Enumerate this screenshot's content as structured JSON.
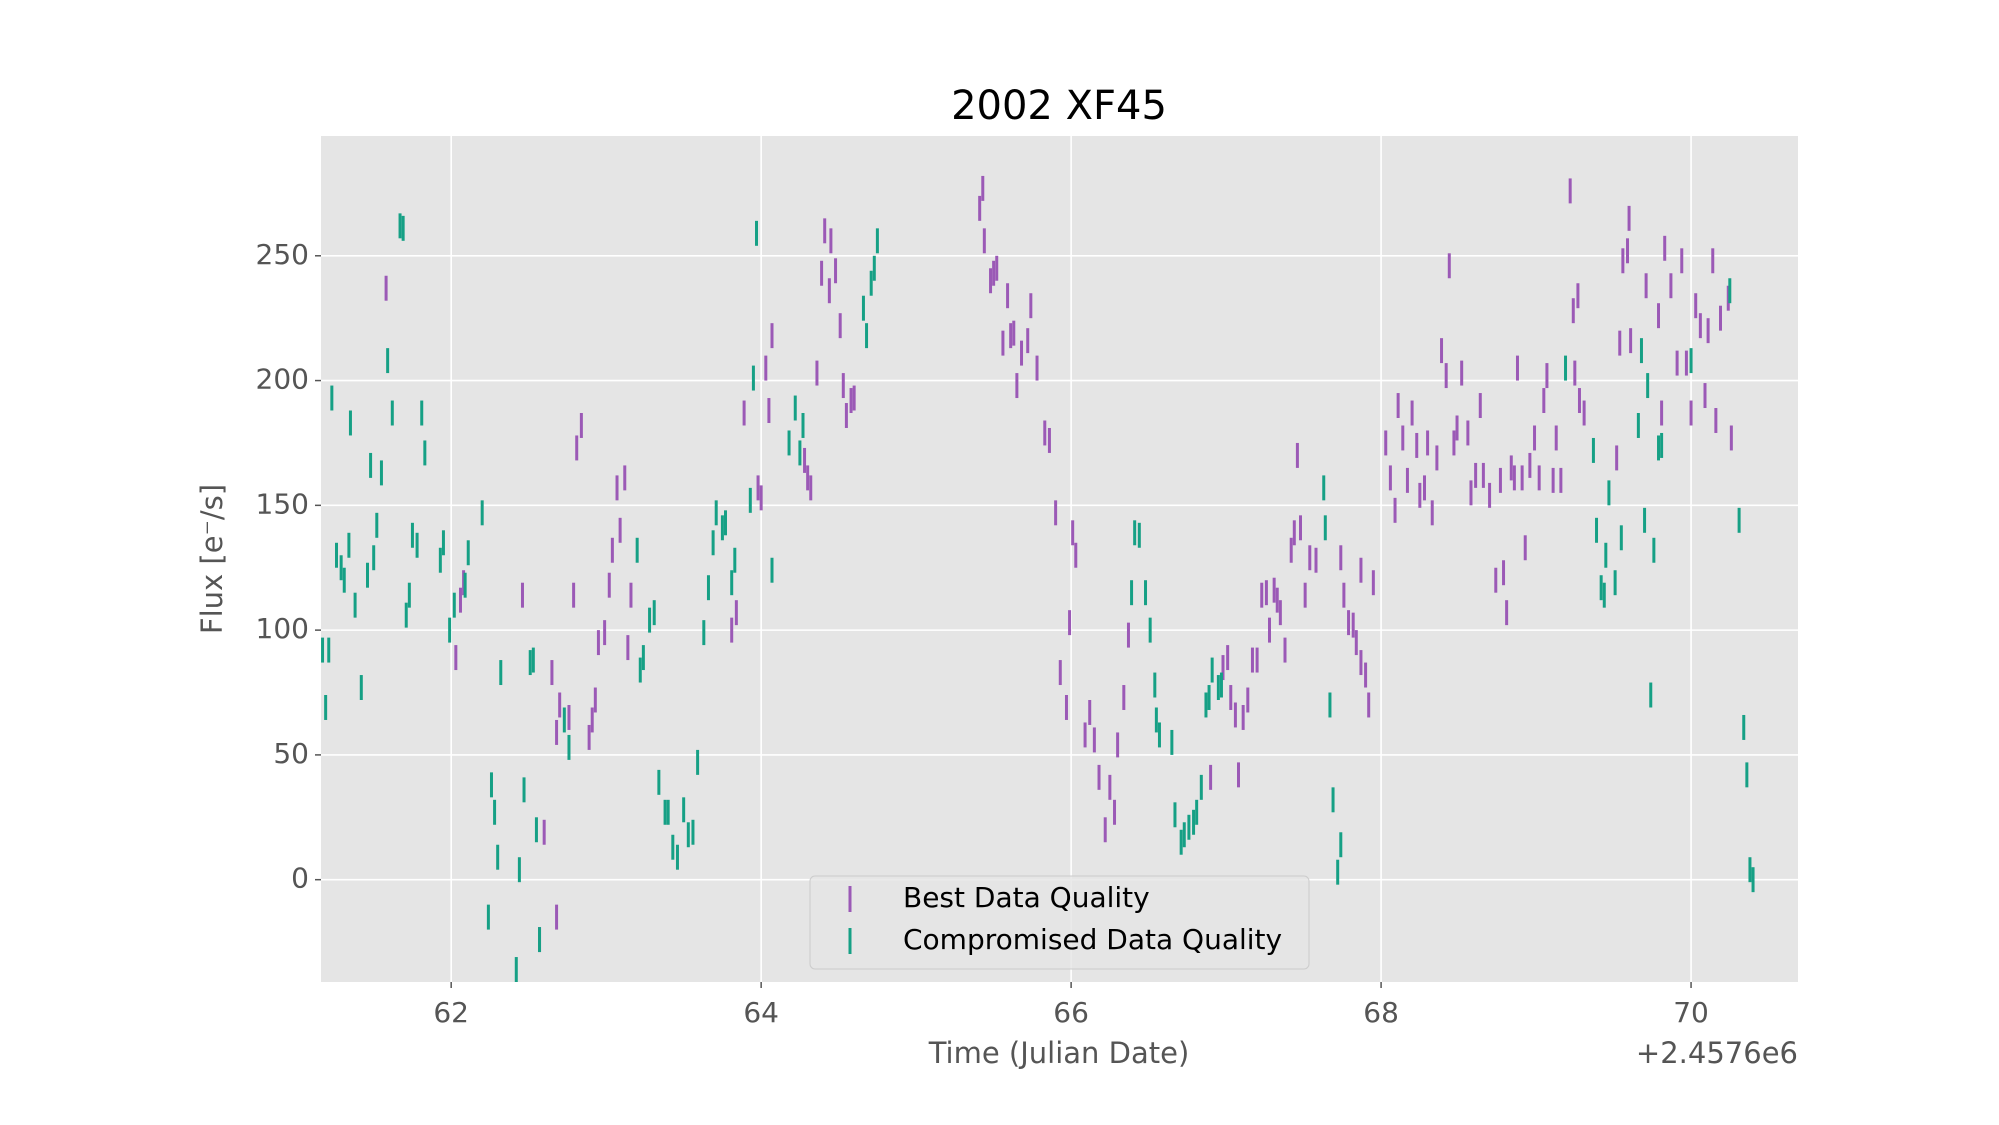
{
  "chart_data": {
    "type": "errorbar",
    "title": "2002 XF45",
    "x_label": "Time (Julian Date)",
    "y_label": "Flux [e⁻/s]",
    "x_offset_label": "+2.4576e6",
    "xlim": [
      61.16,
      70.69
    ],
    "ylim": [
      -41,
      298
    ],
    "xticks": [
      62,
      64,
      66,
      68,
      70
    ],
    "yticks": [
      0,
      50,
      100,
      150,
      200,
      250
    ],
    "grid": true,
    "legend": "lower center",
    "series": [
      {
        "name": "Best Data Quality",
        "color": "#9b59b6",
        "error": 5,
        "x": [
          61.58,
          62.03,
          62.06,
          62.08,
          62.46,
          62.57,
          62.6,
          62.65,
          62.68,
          62.68,
          62.7,
          62.76,
          62.79,
          62.81,
          62.84,
          62.89,
          62.91,
          62.93,
          62.95,
          62.99,
          63.02,
          63.04,
          63.07,
          63.09,
          63.12,
          63.14,
          63.16,
          63.81,
          63.84,
          63.89,
          63.98,
          64.0,
          64.03,
          64.05,
          64.07,
          64.28,
          64.3,
          64.32,
          64.36,
          64.39,
          64.41,
          64.44,
          64.45,
          64.48,
          64.51,
          64.53,
          64.55,
          64.58,
          64.6,
          65.41,
          65.43,
          65.44,
          65.48,
          65.5,
          65.52,
          65.56,
          65.59,
          65.61,
          65.63,
          65.65,
          65.68,
          65.72,
          65.74,
          65.78,
          65.83,
          65.86,
          65.9,
          65.93,
          65.97,
          65.99,
          66.01,
          66.03,
          66.09,
          66.12,
          66.15,
          66.18,
          66.22,
          66.25,
          66.28,
          66.3,
          66.34,
          66.37,
          66.9,
          66.98,
          67.01,
          67.03,
          67.06,
          67.08,
          67.11,
          67.14,
          67.17,
          67.2,
          67.23,
          67.26,
          67.28,
          67.31,
          67.33,
          67.35,
          67.38,
          67.42,
          67.44,
          67.46,
          67.48,
          67.51,
          67.54,
          67.58,
          67.74,
          67.76,
          67.79,
          67.82,
          67.84,
          67.87,
          67.87,
          67.9,
          67.92,
          67.95,
          68.03,
          68.06,
          68.09,
          68.11,
          68.14,
          68.17,
          68.2,
          68.23,
          68.25,
          68.28,
          68.3,
          68.33,
          68.36,
          68.39,
          68.42,
          68.44,
          68.47,
          68.49,
          68.52,
          68.56,
          68.58,
          68.61,
          68.64,
          68.66,
          68.7,
          68.74,
          68.77,
          68.79,
          68.81,
          68.84,
          68.86,
          68.88,
          68.91,
          68.93,
          68.96,
          68.99,
          69.02,
          69.05,
          69.07,
          69.11,
          69.13,
          69.16,
          69.22,
          69.24,
          69.25,
          69.27,
          69.28,
          69.31,
          69.52,
          69.54,
          69.56,
          69.59,
          69.6,
          69.61,
          69.71,
          69.79,
          69.81,
          69.83,
          69.87,
          69.91,
          69.94,
          69.97,
          70.0,
          70.03,
          70.06,
          70.09,
          70.11,
          70.14,
          70.16,
          70.19,
          70.24,
          70.26
        ],
        "values": [
          237,
          89,
          112,
          119,
          114,
          -24,
          19,
          83,
          59,
          -15,
          70,
          65,
          114,
          173,
          182,
          57,
          64,
          72,
          95,
          99,
          118,
          132,
          157,
          140,
          161,
          93,
          114,
          100,
          107,
          187,
          157,
          153,
          205,
          188,
          218,
          168,
          161,
          157,
          203,
          243,
          260,
          236,
          256,
          244,
          222,
          198,
          186,
          192,
          193,
          269,
          277,
          256,
          240,
          243,
          245,
          215,
          234,
          218,
          219,
          198,
          211,
          216,
          230,
          205,
          179,
          176,
          147,
          83,
          69,
          103,
          139,
          130,
          58,
          67,
          56,
          41,
          20,
          37,
          27,
          54,
          73,
          98,
          41,
          85,
          89,
          73,
          66,
          42,
          65,
          72,
          88,
          88,
          114,
          115,
          100,
          116,
          112,
          107,
          92,
          132,
          139,
          170,
          141,
          114,
          129,
          128,
          129,
          114,
          103,
          102,
          95,
          87,
          124,
          82,
          70,
          119,
          175,
          161,
          148,
          190,
          177,
          160,
          187,
          174,
          154,
          157,
          175,
          147,
          169,
          212,
          202,
          246,
          175,
          181,
          203,
          179,
          155,
          162,
          190,
          162,
          154,
          120,
          160,
          123,
          107,
          165,
          161,
          205,
          161,
          133,
          166,
          177,
          161,
          192,
          202,
          160,
          177,
          160,
          276,
          228,
          203,
          234,
          192,
          187,
          169,
          215,
          248,
          252,
          265,
          216,
          238,
          226,
          187,
          253,
          238,
          207,
          248,
          207,
          187,
          230,
          222,
          194,
          220,
          248,
          184,
          225,
          233,
          177
        ]
      },
      {
        "name": "Compromised Data Quality",
        "color": "#16a085",
        "error": 5,
        "x": [
          61.17,
          61.19,
          61.21,
          61.23,
          61.26,
          61.29,
          61.31,
          61.34,
          61.35,
          61.38,
          61.42,
          61.46,
          61.48,
          61.5,
          61.52,
          61.55,
          61.59,
          61.62,
          61.67,
          61.69,
          61.71,
          61.73,
          61.75,
          61.78,
          61.81,
          61.83,
          61.93,
          61.95,
          61.99,
          62.02,
          62.09,
          62.11,
          62.2,
          62.24,
          62.26,
          62.28,
          62.3,
          62.32,
          62.42,
          62.44,
          62.47,
          62.51,
          62.53,
          62.55,
          62.57,
          62.73,
          62.76,
          63.2,
          63.22,
          63.24,
          63.28,
          63.31,
          63.34,
          63.38,
          63.4,
          63.43,
          63.46,
          63.5,
          63.53,
          63.56,
          63.59,
          63.63,
          63.66,
          63.69,
          63.71,
          63.75,
          63.77,
          63.81,
          63.83,
          63.93,
          63.95,
          63.97,
          64.07,
          64.18,
          64.22,
          64.25,
          64.27,
          64.66,
          64.68,
          64.71,
          64.73,
          64.75,
          66.39,
          66.41,
          66.44,
          66.48,
          66.51,
          66.54,
          66.55,
          66.57,
          66.65,
          66.67,
          66.71,
          66.73,
          66.76,
          66.79,
          66.81,
          66.84,
          66.87,
          66.89,
          66.91,
          66.95,
          66.97,
          67.63,
          67.64,
          67.67,
          67.69,
          67.72,
          67.74,
          69.19,
          69.37,
          69.39,
          69.42,
          69.44,
          69.45,
          69.47,
          69.51,
          69.55,
          69.66,
          69.68,
          69.7,
          69.72,
          69.74,
          69.76,
          69.79,
          69.81,
          70.0,
          70.25,
          70.31,
          70.34,
          70.36,
          70.38,
          70.4
        ],
        "values": [
          92,
          69,
          92,
          193,
          130,
          125,
          120,
          134,
          183,
          110,
          77,
          122,
          166,
          129,
          142,
          163,
          208,
          187,
          262,
          261,
          106,
          114,
          138,
          134,
          187,
          171,
          128,
          135,
          100,
          110,
          118,
          131,
          147,
          -15,
          38,
          27,
          9,
          83,
          -36,
          4,
          36,
          87,
          88,
          20,
          -24,
          64,
          53,
          132,
          84,
          89,
          104,
          107,
          39,
          27,
          27,
          13,
          9,
          28,
          18,
          19,
          47,
          99,
          117,
          135,
          147,
          141,
          143,
          119,
          128,
          152,
          201,
          259,
          124,
          175,
          189,
          171,
          182,
          229,
          218,
          239,
          245,
          256,
          115,
          139,
          138,
          115,
          100,
          78,
          64,
          58,
          55,
          26,
          15,
          18,
          21,
          23,
          27,
          37,
          70,
          73,
          84,
          77,
          78,
          157,
          141,
          70,
          32,
          3,
          14,
          205,
          172,
          140,
          117,
          114,
          130,
          155,
          119,
          137,
          182,
          212,
          144,
          198,
          74,
          132,
          173,
          174,
          208,
          236,
          144,
          61,
          42,
          4,
          0
        ]
      }
    ]
  }
}
